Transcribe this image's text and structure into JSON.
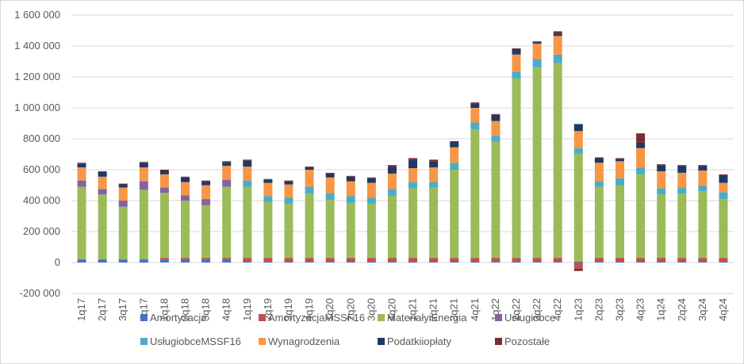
{
  "chart_data": {
    "type": "stacked-bar",
    "title": "",
    "xlabel": "",
    "ylabel": "",
    "ylim": [
      -200000,
      1600000
    ],
    "y_ticks": [
      -200000,
      0,
      200000,
      400000,
      600000,
      800000,
      1000000,
      1200000,
      1400000,
      1600000
    ],
    "y_tick_labels": [
      "-200 000",
      "0",
      "200 000",
      "400 000",
      "600 000",
      "800 000",
      "1 000 000",
      "1 200 000",
      "1 400 000",
      "1 600 000"
    ],
    "grid": true,
    "legend_position": "bottom",
    "categories": [
      "1q17",
      "2q17",
      "3q17",
      "4q17",
      "1q18",
      "2q18",
      "3q18",
      "4q18",
      "1q19",
      "2q19",
      "3q19",
      "4q19",
      "1q20",
      "2q20",
      "3q20",
      "4q20",
      "1q21",
      "2q21",
      "3q21",
      "4q21",
      "1q22",
      "2q22",
      "3q22",
      "4q22",
      "1q23",
      "2q23",
      "3q23",
      "4q23",
      "1q24",
      "2q24",
      "3q24",
      "4q24"
    ],
    "series": [
      {
        "name": "Amortyzacja",
        "color": "#4472C4",
        "values": [
          20000,
          20000,
          20000,
          20000,
          20000,
          20000,
          20000,
          20000,
          5000,
          5000,
          5000,
          5000,
          5000,
          5000,
          5000,
          5000,
          5000,
          5000,
          5000,
          5000,
          5000,
          5000,
          5000,
          5000,
          5000,
          5000,
          5000,
          5000,
          5000,
          5000,
          5000,
          5000
        ]
      },
      {
        "name": "AmortyzacjaMSSF16",
        "color": "#C0504D",
        "values": [
          0,
          0,
          0,
          0,
          10000,
          10000,
          10000,
          10000,
          25000,
          25000,
          25000,
          25000,
          25000,
          25000,
          25000,
          25000,
          25000,
          25000,
          25000,
          25000,
          25000,
          25000,
          25000,
          25000,
          -40000,
          25000,
          25000,
          25000,
          25000,
          25000,
          25000,
          25000
        ]
      },
      {
        "name": "MateriałyiEnergia",
        "color": "#9BBB59",
        "values": [
          470000,
          420000,
          340000,
          450000,
          420000,
          370000,
          340000,
          460000,
          460000,
          360000,
          350000,
          415000,
          375000,
          355000,
          350000,
          400000,
          450000,
          455000,
          570000,
          830000,
          750000,
          1160000,
          1230000,
          1260000,
          700000,
          460000,
          470000,
          540000,
          410000,
          415000,
          430000,
          380000
        ]
      },
      {
        "name": "Usługiobce",
        "color": "#8064A2",
        "values": [
          40000,
          35000,
          40000,
          55000,
          35000,
          35000,
          40000,
          45000,
          0,
          0,
          0,
          0,
          0,
          0,
          0,
          0,
          0,
          0,
          0,
          0,
          0,
          0,
          0,
          0,
          0,
          0,
          0,
          0,
          0,
          0,
          0,
          0
        ]
      },
      {
        "name": "UsługiobceMSSF16",
        "color": "#4BACC6",
        "values": [
          0,
          0,
          0,
          0,
          0,
          0,
          0,
          0,
          40000,
          40000,
          40000,
          45000,
          45000,
          45000,
          40000,
          45000,
          40000,
          35000,
          45000,
          45000,
          40000,
          45000,
          55000,
          55000,
          35000,
          35000,
          45000,
          45000,
          40000,
          40000,
          35000,
          45000
        ]
      },
      {
        "name": "Wynagrodzenia",
        "color": "#F79646",
        "values": [
          85000,
          80000,
          85000,
          90000,
          85000,
          85000,
          90000,
          90000,
          90000,
          85000,
          85000,
          110000,
          100000,
          95000,
          95000,
          100000,
          90000,
          95000,
          100000,
          95000,
          95000,
          110000,
          100000,
          120000,
          110000,
          120000,
          110000,
          125000,
          110000,
          95000,
          100000,
          60000
        ]
      },
      {
        "name": "Podatkiiopłaty",
        "color": "#1F3864",
        "values": [
          25000,
          30000,
          20000,
          30000,
          25000,
          30000,
          25000,
          25000,
          40000,
          20000,
          20000,
          15000,
          25000,
          30000,
          30000,
          45000,
          55000,
          40000,
          35000,
          30000,
          40000,
          35000,
          10000,
          15000,
          45000,
          30000,
          15000,
          35000,
          40000,
          45000,
          30000,
          50000
        ]
      },
      {
        "name": "Pozostałe",
        "color": "#7B2C2C",
        "values": [
          5000,
          5000,
          5000,
          5000,
          5000,
          5000,
          5000,
          5000,
          5000,
          5000,
          5000,
          5000,
          5000,
          5000,
          5000,
          10000,
          10000,
          10000,
          5000,
          5000,
          5000,
          5000,
          5000,
          15000,
          -15000,
          5000,
          5000,
          60000,
          5000,
          5000,
          5000,
          5000
        ]
      }
    ]
  }
}
